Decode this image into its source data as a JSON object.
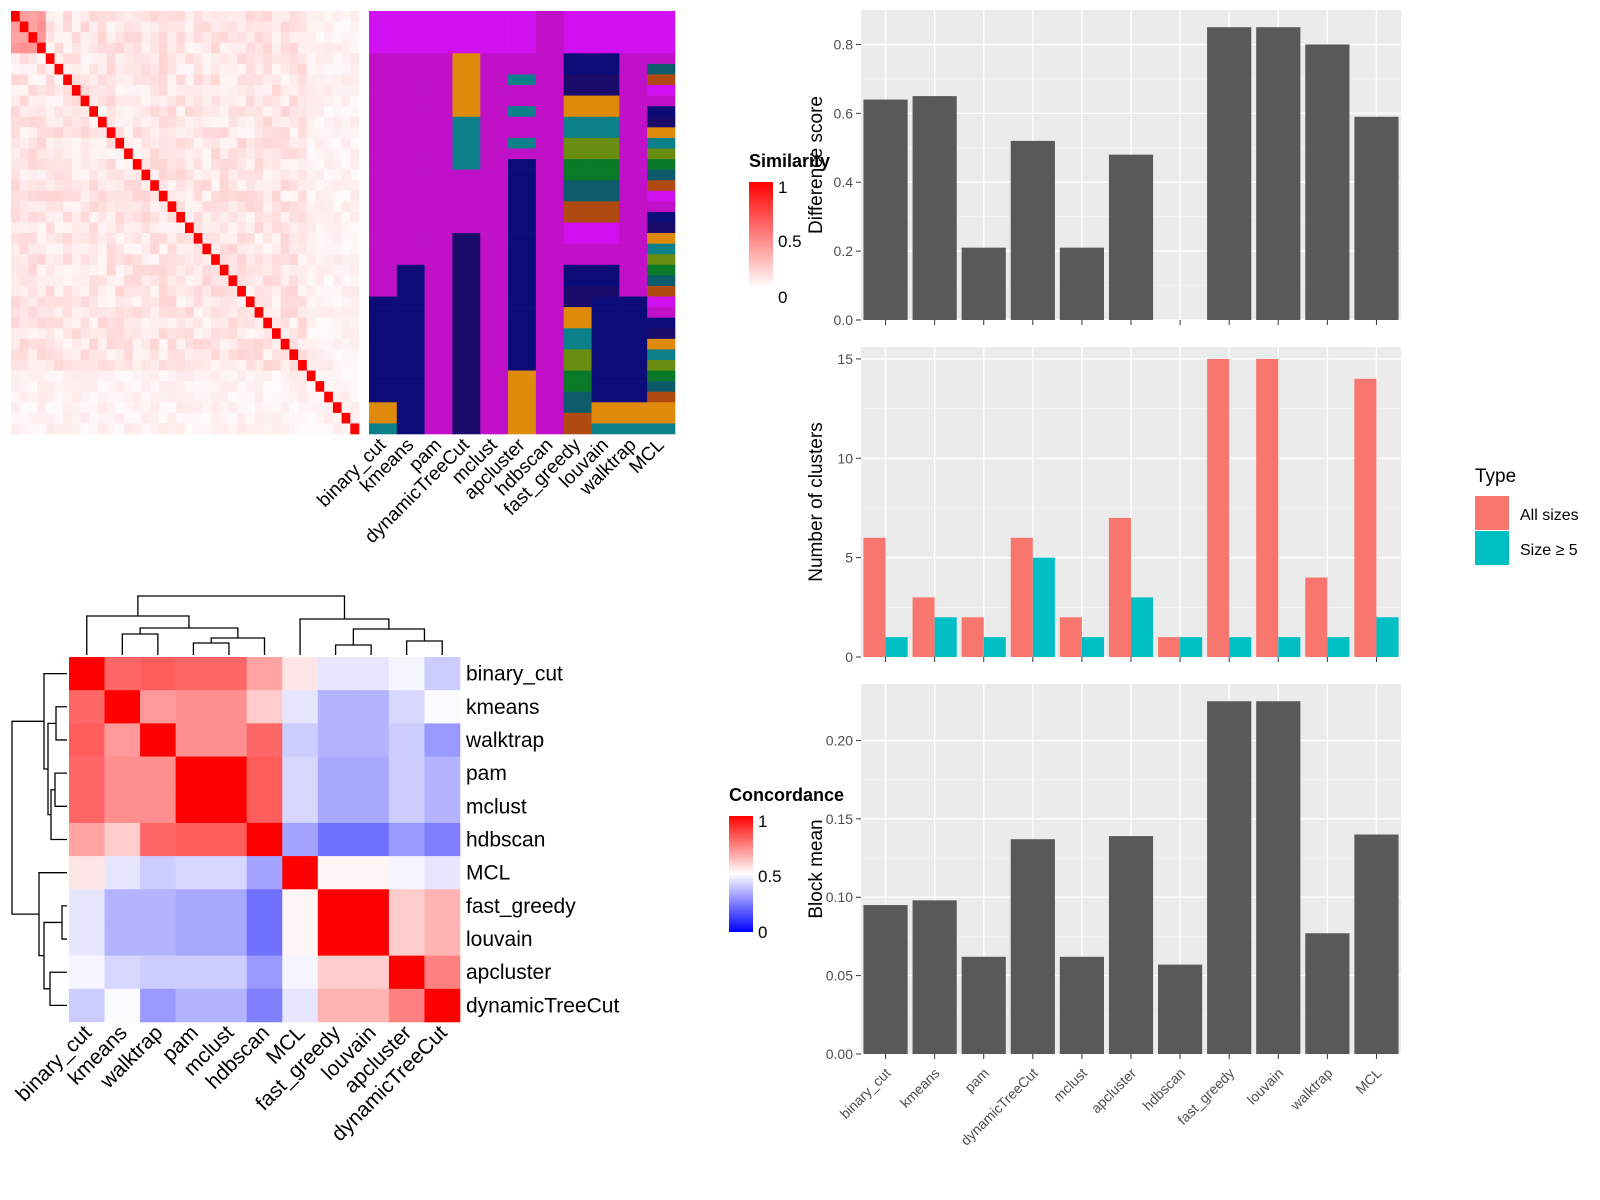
{
  "chart_data": [
    {
      "type": "heatmap",
      "panel": "top-left",
      "legend_title": "Similarity",
      "legend_ticks": [
        "1",
        "0.5",
        "0"
      ],
      "legend_colors": [
        "#ff0000",
        "#ffffff"
      ],
      "n_terms": 40,
      "partition_labels": [
        "binary_cut",
        "kmeans",
        "pam",
        "dynamicTreeCut",
        "mclust",
        "apcluster",
        "hdbscan",
        "fast_greedy",
        "louvain",
        "walktrap",
        "MCL"
      ],
      "partition_palette": [
        "#d010f0",
        "#c010c8",
        "#0c0c78",
        "#1a0a6a",
        "#e08a0c",
        "#0c8088",
        "#6a8c10",
        "#0a7a28",
        "#0c5a6a",
        "#b04a10"
      ]
    },
    {
      "type": "heatmap",
      "panel": "bottom-left",
      "legend_title": "Concordance",
      "legend_ticks": [
        "1",
        "0.5",
        "0"
      ],
      "legend_colors": [
        "#0000ff",
        "#ffffff",
        "#ff0000"
      ],
      "row_labels": [
        "binary_cut",
        "kmeans",
        "walktrap",
        "pam",
        "mclust",
        "hdbscan",
        "MCL",
        "fast_greedy",
        "louvain",
        "apcluster",
        "dynamicTreeCut"
      ],
      "col_labels": [
        "binary_cut",
        "kmeans",
        "walktrap",
        "pam",
        "mclust",
        "hdbscan",
        "MCL",
        "fast_greedy",
        "louvain",
        "apcluster",
        "dynamicTreeCut"
      ],
      "values": [
        [
          1.0,
          0.8,
          0.82,
          0.8,
          0.8,
          0.68,
          0.55,
          0.45,
          0.45,
          0.48,
          0.4
        ],
        [
          0.8,
          1.0,
          0.7,
          0.72,
          0.72,
          0.6,
          0.45,
          0.35,
          0.35,
          0.42,
          0.49
        ],
        [
          0.82,
          0.7,
          1.0,
          0.72,
          0.72,
          0.8,
          0.4,
          0.35,
          0.35,
          0.4,
          0.3
        ],
        [
          0.8,
          0.72,
          0.72,
          1.0,
          1.0,
          0.82,
          0.42,
          0.33,
          0.33,
          0.4,
          0.35
        ],
        [
          0.8,
          0.72,
          0.72,
          1.0,
          1.0,
          0.82,
          0.42,
          0.33,
          0.33,
          0.4,
          0.35
        ],
        [
          0.68,
          0.6,
          0.8,
          0.82,
          0.82,
          1.0,
          0.32,
          0.22,
          0.22,
          0.3,
          0.25
        ],
        [
          0.55,
          0.45,
          0.4,
          0.42,
          0.42,
          0.32,
          1.0,
          0.52,
          0.52,
          0.48,
          0.45
        ],
        [
          0.45,
          0.35,
          0.35,
          0.33,
          0.33,
          0.22,
          0.52,
          1.0,
          1.0,
          0.6,
          0.65
        ],
        [
          0.45,
          0.35,
          0.35,
          0.33,
          0.33,
          0.22,
          0.52,
          1.0,
          1.0,
          0.6,
          0.65
        ],
        [
          0.48,
          0.42,
          0.4,
          0.4,
          0.4,
          0.3,
          0.48,
          0.6,
          0.6,
          1.0,
          0.75
        ],
        [
          0.4,
          0.49,
          0.3,
          0.35,
          0.35,
          0.25,
          0.45,
          0.65,
          0.65,
          0.75,
          1.0
        ]
      ]
    },
    {
      "type": "bar",
      "panel": "top-right",
      "categories": [
        "binary_cut",
        "kmeans",
        "pam",
        "dynamicTreeCut",
        "mclust",
        "apcluster",
        "hdbscan",
        "fast_greedy",
        "louvain",
        "walktrap",
        "MCL"
      ],
      "values": [
        0.64,
        0.65,
        0.21,
        0.52,
        0.21,
        0.48,
        0.0,
        0.85,
        0.85,
        0.8,
        0.59
      ],
      "ylabel": "Difference score",
      "ylim": [
        0,
        0.9
      ],
      "yticks": [
        0.0,
        0.2,
        0.4,
        0.6,
        0.8
      ],
      "ytick_labels": [
        "0.0",
        "0.2",
        "0.4",
        "0.6",
        "0.8"
      ],
      "bar_color": "#595959"
    },
    {
      "type": "bar",
      "panel": "middle-right",
      "categories": [
        "binary_cut",
        "kmeans",
        "pam",
        "dynamicTreeCut",
        "mclust",
        "apcluster",
        "hdbscan",
        "fast_greedy",
        "louvain",
        "walktrap",
        "MCL"
      ],
      "series": [
        {
          "name": "All sizes",
          "values": [
            6,
            3,
            2,
            6,
            2,
            7,
            1,
            15,
            15,
            4,
            14
          ],
          "color": "#f8766d"
        },
        {
          "name": "Size ≥ 5",
          "values": [
            1,
            2,
            1,
            5,
            1,
            3,
            1,
            1,
            1,
            1,
            2
          ],
          "color": "#00bfc4"
        }
      ],
      "ylabel": "Number of clusters",
      "ylim": [
        0,
        15.6
      ],
      "yticks": [
        0,
        5,
        10,
        15
      ],
      "ytick_labels": [
        "0",
        "5",
        "10",
        "15"
      ],
      "legend_title": "Type",
      "legend_position": "right"
    },
    {
      "type": "bar",
      "panel": "bottom-right",
      "categories": [
        "binary_cut",
        "kmeans",
        "pam",
        "dynamicTreeCut",
        "mclust",
        "apcluster",
        "hdbscan",
        "fast_greedy",
        "louvain",
        "walktrap",
        "MCL"
      ],
      "values": [
        0.095,
        0.098,
        0.062,
        0.137,
        0.062,
        0.139,
        0.057,
        0.225,
        0.225,
        0.077,
        0.14
      ],
      "ylabel": "Block mean",
      "ylim": [
        0,
        0.236
      ],
      "yticks": [
        0.0,
        0.05,
        0.1,
        0.15,
        0.2
      ],
      "ytick_labels": [
        "0.00",
        "0.05",
        "0.10",
        "0.15",
        "0.20"
      ],
      "bar_color": "#595959"
    }
  ]
}
